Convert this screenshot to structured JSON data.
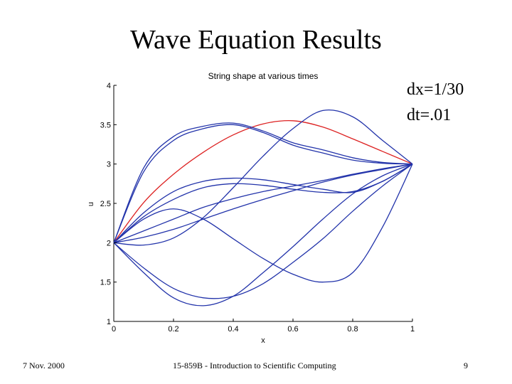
{
  "slide": {
    "title": "Wave Equation Results",
    "params": [
      "dx=1/30",
      "dt=.01"
    ],
    "footer_left": "7 Nov. 2000",
    "footer_center": "15-859B - Introduction to Scientific Computing",
    "footer_right": "9"
  },
  "chart_data": {
    "type": "line",
    "title": "String shape at various times",
    "xlabel": "x",
    "ylabel": "u",
    "xlim": [
      0,
      1
    ],
    "ylim": [
      1,
      4
    ],
    "xticks": [
      "0",
      "0.2",
      "0.4",
      "0.6",
      "0.8",
      "1"
    ],
    "yticks": [
      "1",
      "1.5",
      "2",
      "2.5",
      "3",
      "3.5",
      "4"
    ],
    "grid": false,
    "x": [
      0,
      0.1,
      0.2,
      0.3,
      0.4,
      0.5,
      0.6,
      0.7,
      0.8,
      0.9,
      1.0
    ],
    "series": [
      {
        "color": "#dd2222",
        "values": [
          2.0,
          2.51,
          2.87,
          3.15,
          3.37,
          3.51,
          3.55,
          3.47,
          3.32,
          3.16,
          3.0
        ]
      },
      {
        "color": "#2233aa",
        "values": [
          2.0,
          2.95,
          3.35,
          3.48,
          3.52,
          3.42,
          3.27,
          3.18,
          3.08,
          3.02,
          3.0
        ]
      },
      {
        "color": "#2233aa",
        "values": [
          2.0,
          2.9,
          3.3,
          3.45,
          3.5,
          3.4,
          3.24,
          3.14,
          3.05,
          3.01,
          3.0
        ]
      },
      {
        "color": "#2233aa",
        "values": [
          2.0,
          2.38,
          2.65,
          2.78,
          2.82,
          2.8,
          2.74,
          2.68,
          2.64,
          2.78,
          3.0
        ]
      },
      {
        "color": "#2233aa",
        "values": [
          2.0,
          2.33,
          2.55,
          2.7,
          2.75,
          2.73,
          2.68,
          2.64,
          2.65,
          2.78,
          3.0
        ]
      },
      {
        "color": "#2233aa",
        "values": [
          2.0,
          2.15,
          2.3,
          2.45,
          2.56,
          2.65,
          2.72,
          2.79,
          2.87,
          2.94,
          3.0
        ]
      },
      {
        "color": "#2233aa",
        "values": [
          2.0,
          2.07,
          2.17,
          2.3,
          2.43,
          2.55,
          2.66,
          2.77,
          2.86,
          2.93,
          3.0
        ]
      },
      {
        "color": "#2233aa",
        "values": [
          2.0,
          1.97,
          2.06,
          2.32,
          2.7,
          3.1,
          3.45,
          3.68,
          3.6,
          3.3,
          3.0
        ]
      },
      {
        "color": "#2233aa",
        "values": [
          2.0,
          2.3,
          2.43,
          2.3,
          2.05,
          1.8,
          1.6,
          1.5,
          1.62,
          2.2,
          3.0
        ]
      },
      {
        "color": "#2233aa",
        "values": [
          2.0,
          1.62,
          1.3,
          1.2,
          1.32,
          1.62,
          1.95,
          2.3,
          2.62,
          2.85,
          3.0
        ]
      },
      {
        "color": "#2233aa",
        "values": [
          2.0,
          1.68,
          1.42,
          1.3,
          1.32,
          1.48,
          1.75,
          2.05,
          2.4,
          2.72,
          3.0
        ]
      }
    ]
  }
}
